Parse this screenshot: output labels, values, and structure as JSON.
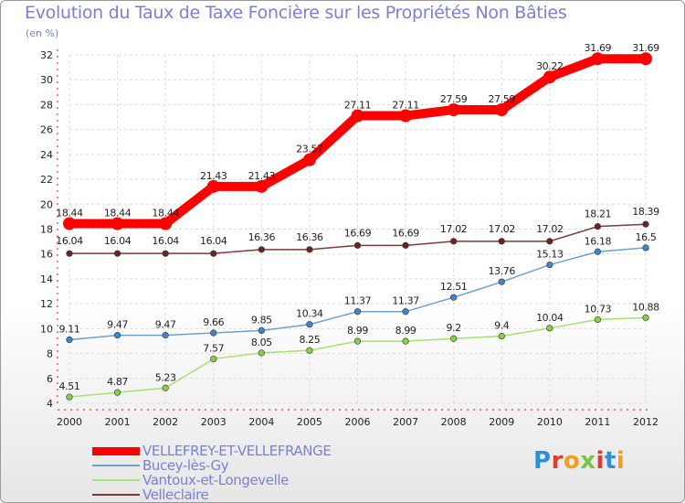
{
  "chart_data": {
    "type": "line",
    "title": "Evolution du Taux de Taxe Foncière sur les Propriétés Non Bâties",
    "ylabel": "(en %)",
    "xlabel": "",
    "ylim": [
      4,
      32
    ],
    "yticks": [
      "4",
      "6",
      "8",
      "10",
      "12",
      "14",
      "16",
      "18",
      "20",
      "22",
      "24",
      "26",
      "28",
      "30",
      "32"
    ],
    "categories": [
      "2000",
      "2001",
      "2002",
      "2003",
      "2004",
      "2005",
      "2006",
      "2007",
      "2008",
      "2009",
      "2010",
      "2011",
      "2012"
    ],
    "series": [
      {
        "name": "VELLEFREY-ET-VELLEFRANGE",
        "color": "#ff0000",
        "values": [
          18.44,
          18.44,
          18.44,
          21.43,
          21.43,
          23.57,
          27.11,
          27.11,
          27.59,
          27.59,
          30.22,
          31.69,
          31.69
        ],
        "labels": [
          "18.44",
          "18.44",
          "18.44",
          "21.43",
          "21.43",
          "23.57",
          "27.11",
          "27.11",
          "27.59",
          "27.59",
          "30.22",
          "31.69",
          "31.69"
        ]
      },
      {
        "name": "Bucey-lès-Gy",
        "color": "#6fa0d0",
        "marker": "#3f86c9",
        "values": [
          9.11,
          9.47,
          9.47,
          9.66,
          9.85,
          10.34,
          11.37,
          11.37,
          12.51,
          13.76,
          15.13,
          16.18,
          16.5
        ],
        "labels": [
          "9.11",
          "9.47",
          "9.47",
          "9.66",
          "9.85",
          "10.34",
          "11.37",
          "11.37",
          "12.51",
          "13.76",
          "15.13",
          "16.18",
          "16.5"
        ]
      },
      {
        "name": "Vantoux-et-Longevelle",
        "color": "#a9e06e",
        "marker": "#86cf4a",
        "values": [
          4.51,
          4.87,
          5.23,
          7.57,
          8.05,
          8.25,
          8.99,
          8.99,
          9.2,
          9.4,
          10.04,
          10.73,
          10.88
        ],
        "labels": [
          "4.51",
          "4.87",
          "5.23",
          "7.57",
          "8.05",
          "8.25",
          "8.99",
          "8.99",
          "9.2",
          "9.4",
          "10.04",
          "10.73",
          "10.88"
        ]
      },
      {
        "name": "Velleclaire",
        "color": "#7b3a3a",
        "marker": "#6a2424",
        "values": [
          16.04,
          16.04,
          16.04,
          16.04,
          16.36,
          16.36,
          16.69,
          16.69,
          17.02,
          17.02,
          17.02,
          18.21,
          18.39
        ],
        "labels": [
          "16.04",
          "16.04",
          "16.04",
          "16.04",
          "16.36",
          "16.36",
          "16.69",
          "16.69",
          "17.02",
          "17.02",
          "17.02",
          "18.21",
          "18.39"
        ]
      }
    ],
    "legend_position": "bottom-left"
  },
  "brand": {
    "logo_text": "Proxiti"
  }
}
